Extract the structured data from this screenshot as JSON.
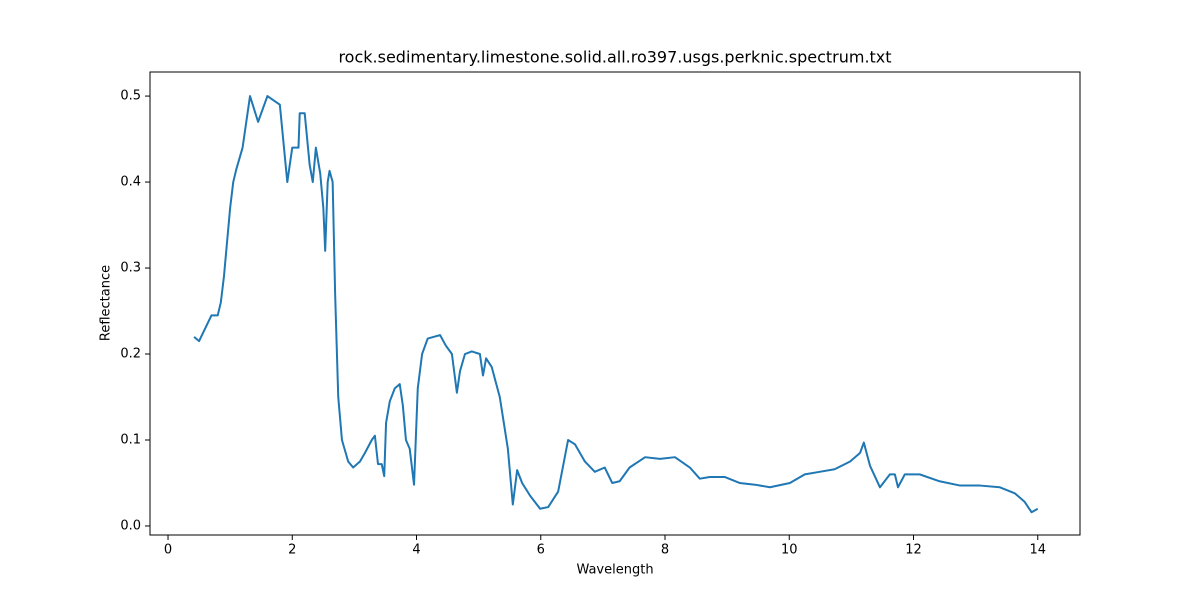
{
  "chart_data": {
    "type": "line",
    "title": "rock.sedimentary.limestone.solid.all.ro397.usgs.perknic.spectrum.txt",
    "x_label": "Wavelength",
    "y_label": "Reflectance",
    "x": [
      0.42,
      0.45,
      0.5,
      0.6,
      0.7,
      0.8,
      0.85,
      0.9,
      0.95,
      1.0,
      1.05,
      1.1,
      1.2,
      1.32,
      1.45,
      1.6,
      1.8,
      1.92,
      2.0,
      2.1,
      2.12,
      2.2,
      2.28,
      2.33,
      2.38,
      2.45,
      2.5,
      2.53,
      2.57,
      2.6,
      2.65,
      2.69,
      2.74,
      2.8,
      2.9,
      2.98,
      3.09,
      3.17,
      3.28,
      3.33,
      3.38,
      3.44,
      3.48,
      3.51,
      3.57,
      3.65,
      3.73,
      3.78,
      3.83,
      3.89,
      3.96,
      4.02,
      4.09,
      4.18,
      4.28,
      4.38,
      4.47,
      4.57,
      4.65,
      4.7,
      4.78,
      4.89,
      5.02,
      5.07,
      5.12,
      5.21,
      5.34,
      5.47,
      5.55,
      5.62,
      5.7,
      5.83,
      5.99,
      6.12,
      6.28,
      6.44,
      6.55,
      6.71,
      6.87,
      7.03,
      7.15,
      7.27,
      7.43,
      7.68,
      7.92,
      8.16,
      8.4,
      8.56,
      8.72,
      8.96,
      9.2,
      9.45,
      9.69,
      10.01,
      10.25,
      10.49,
      10.73,
      10.98,
      11.14,
      11.2,
      11.3,
      11.46,
      11.62,
      11.7,
      11.75,
      11.86,
      12.1,
      12.42,
      12.75,
      13.07,
      13.39,
      13.63,
      13.79,
      13.9,
      14.0
    ],
    "series": [
      {
        "name": "Reflectance",
        "color": "#1f77b4",
        "values": [
          0.22,
          0.218,
          0.215,
          0.23,
          0.245,
          0.245,
          0.26,
          0.29,
          0.33,
          0.37,
          0.4,
          0.415,
          0.44,
          0.5,
          0.47,
          0.5,
          0.49,
          0.4,
          0.44,
          0.44,
          0.48,
          0.48,
          0.42,
          0.4,
          0.44,
          0.41,
          0.37,
          0.32,
          0.4,
          0.413,
          0.4,
          0.27,
          0.15,
          0.1,
          0.075,
          0.068,
          0.075,
          0.085,
          0.1,
          0.105,
          0.072,
          0.072,
          0.058,
          0.12,
          0.145,
          0.16,
          0.165,
          0.14,
          0.1,
          0.09,
          0.048,
          0.16,
          0.2,
          0.218,
          0.22,
          0.222,
          0.21,
          0.2,
          0.155,
          0.18,
          0.2,
          0.203,
          0.2,
          0.175,
          0.195,
          0.185,
          0.15,
          0.09,
          0.025,
          0.065,
          0.05,
          0.035,
          0.02,
          0.022,
          0.04,
          0.1,
          0.095,
          0.075,
          0.063,
          0.068,
          0.05,
          0.052,
          0.068,
          0.08,
          0.078,
          0.08,
          0.068,
          0.055,
          0.057,
          0.057,
          0.05,
          0.048,
          0.045,
          0.05,
          0.06,
          0.063,
          0.066,
          0.075,
          0.085,
          0.097,
          0.07,
          0.045,
          0.06,
          0.06,
          0.045,
          0.06,
          0.06,
          0.052,
          0.047,
          0.047,
          0.045,
          0.038,
          0.028,
          0.016,
          0.02
        ]
      }
    ],
    "xlim": [
      -0.29,
      14.68
    ],
    "ylim": [
      -0.0105,
      0.528
    ],
    "xticks": [
      0,
      2,
      4,
      6,
      8,
      10,
      12,
      14
    ],
    "yticks": [
      {
        "value": 0,
        "label": "0.0"
      },
      0.1,
      0.2,
      0.3,
      0.4,
      0.5
    ],
    "grid": false
  }
}
